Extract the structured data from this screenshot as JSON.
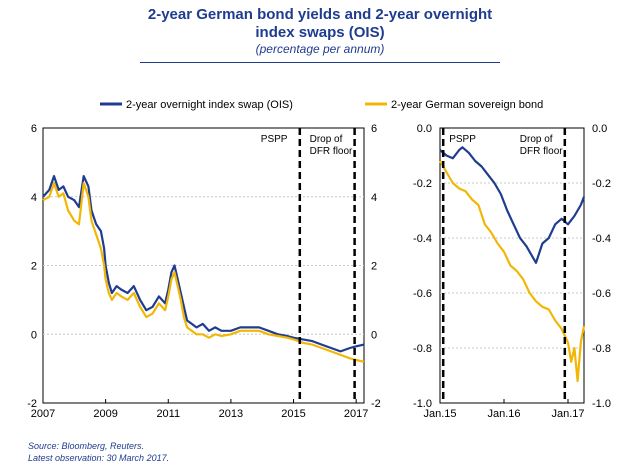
{
  "header": {
    "title_line1": "2-year German bond yields and 2-year overnight",
    "title_line2": "index swaps (OIS)",
    "subtitle": "(percentage per annum)"
  },
  "footer": {
    "source": "Source: Bloomberg, Reuters.",
    "observation": "Latest observation: 30 March 2017."
  },
  "colors": {
    "ois": "#1f3c8f",
    "bond": "#f2b705",
    "title": "#1f3c8f"
  },
  "chart_data": [
    {
      "type": "line",
      "panel": "left",
      "legend_position": "top",
      "xlim": [
        2007.0,
        2017.25
      ],
      "ylim": [
        -2,
        6
      ],
      "x_ticks": [
        2007,
        2009,
        2011,
        2013,
        2015,
        2017
      ],
      "x_tick_labels": [
        "2007",
        "2009",
        "2011",
        "2013",
        "2015",
        "2017"
      ],
      "y_ticks": [
        -2,
        0,
        2,
        4,
        6
      ],
      "y_tick_labels": [
        "-2",
        "0",
        "2",
        "4",
        "6"
      ],
      "grid": true,
      "vlines": [
        {
          "x": 2015.2,
          "label": "PSPP"
        },
        {
          "x": 2016.95,
          "label": "Drop of DFR floor"
        }
      ],
      "series": [
        {
          "name": "2-year overnight index swap (OIS)",
          "x": [
            2007.0,
            2007.2,
            2007.35,
            2007.5,
            2007.65,
            2007.8,
            2008.0,
            2008.15,
            2008.3,
            2008.45,
            2008.55,
            2008.7,
            2008.85,
            2008.95,
            2009.0,
            2009.1,
            2009.2,
            2009.35,
            2009.5,
            2009.7,
            2009.9,
            2010.1,
            2010.3,
            2010.5,
            2010.7,
            2010.9,
            2011.0,
            2011.1,
            2011.2,
            2011.3,
            2011.4,
            2011.5,
            2011.6,
            2011.75,
            2011.9,
            2012.1,
            2012.3,
            2012.5,
            2012.7,
            2013.0,
            2013.3,
            2013.6,
            2013.9,
            2014.2,
            2014.5,
            2014.8,
            2015.0,
            2015.3,
            2015.6,
            2015.9,
            2016.2,
            2016.5,
            2016.8,
            2017.0,
            2017.25
          ],
          "values": [
            4.0,
            4.2,
            4.6,
            4.2,
            4.3,
            4.0,
            3.9,
            3.7,
            4.6,
            4.3,
            3.6,
            3.2,
            3.0,
            2.5,
            2.0,
            1.5,
            1.2,
            1.4,
            1.3,
            1.2,
            1.4,
            1.0,
            0.7,
            0.8,
            1.1,
            0.9,
            1.3,
            1.8,
            2.0,
            1.6,
            1.2,
            0.8,
            0.4,
            0.3,
            0.2,
            0.3,
            0.1,
            0.2,
            0.1,
            0.1,
            0.2,
            0.2,
            0.2,
            0.1,
            0.0,
            -0.05,
            -0.1,
            -0.15,
            -0.2,
            -0.3,
            -0.4,
            -0.5,
            -0.4,
            -0.35,
            -0.3
          ]
        },
        {
          "name": "2-year German sovereign bond",
          "x": [
            2007.0,
            2007.2,
            2007.35,
            2007.5,
            2007.65,
            2007.8,
            2008.0,
            2008.15,
            2008.3,
            2008.45,
            2008.55,
            2008.7,
            2008.85,
            2008.95,
            2009.0,
            2009.1,
            2009.2,
            2009.35,
            2009.5,
            2009.7,
            2009.9,
            2010.1,
            2010.3,
            2010.5,
            2010.7,
            2010.9,
            2011.0,
            2011.1,
            2011.2,
            2011.3,
            2011.4,
            2011.5,
            2011.6,
            2011.75,
            2011.9,
            2012.1,
            2012.3,
            2012.5,
            2012.7,
            2013.0,
            2013.3,
            2013.6,
            2013.9,
            2014.2,
            2014.5,
            2014.8,
            2015.0,
            2015.3,
            2015.6,
            2015.9,
            2016.2,
            2016.5,
            2016.8,
            2017.0,
            2017.25
          ],
          "values": [
            3.9,
            4.0,
            4.4,
            4.0,
            4.1,
            3.6,
            3.3,
            3.2,
            4.4,
            4.0,
            3.3,
            2.9,
            2.5,
            2.0,
            1.6,
            1.2,
            1.0,
            1.2,
            1.1,
            1.0,
            1.2,
            0.8,
            0.5,
            0.6,
            0.9,
            0.7,
            1.1,
            1.6,
            1.8,
            1.4,
            1.0,
            0.5,
            0.2,
            0.1,
            0.0,
            0.0,
            -0.1,
            0.0,
            -0.05,
            0.0,
            0.1,
            0.1,
            0.1,
            0.0,
            -0.05,
            -0.1,
            -0.15,
            -0.25,
            -0.3,
            -0.4,
            -0.5,
            -0.6,
            -0.7,
            -0.75,
            -0.8
          ]
        }
      ]
    },
    {
      "type": "line",
      "panel": "right",
      "xlim": [
        2015.0,
        2017.25
      ],
      "ylim": [
        -1.0,
        0.0
      ],
      "x_ticks": [
        2015.0,
        2016.0,
        2017.0
      ],
      "x_tick_labels": [
        "Jan.15",
        "Jan.16",
        "Jan.17"
      ],
      "y_ticks": [
        -1.0,
        -0.8,
        -0.6,
        -0.4,
        -0.2,
        0.0
      ],
      "y_tick_labels": [
        "-1.0",
        "-0.8",
        "-0.6",
        "-0.4",
        "-0.2",
        "0.0"
      ],
      "grid": true,
      "vlines": [
        {
          "x": 2015.05,
          "label": "PSPP"
        },
        {
          "x": 2016.95,
          "label": "Drop of DFR floor"
        }
      ],
      "series": [
        {
          "name": "2-year overnight index swap (OIS)",
          "x": [
            2015.0,
            2015.1,
            2015.2,
            2015.3,
            2015.35,
            2015.45,
            2015.55,
            2015.65,
            2015.75,
            2015.85,
            2015.95,
            2016.05,
            2016.15,
            2016.25,
            2016.35,
            2016.45,
            2016.5,
            2016.6,
            2016.7,
            2016.8,
            2016.9,
            2017.0,
            2017.1,
            2017.2,
            2017.25
          ],
          "values": [
            -0.08,
            -0.1,
            -0.11,
            -0.08,
            -0.07,
            -0.09,
            -0.12,
            -0.14,
            -0.17,
            -0.2,
            -0.24,
            -0.3,
            -0.35,
            -0.4,
            -0.43,
            -0.47,
            -0.49,
            -0.42,
            -0.4,
            -0.35,
            -0.33,
            -0.35,
            -0.32,
            -0.28,
            -0.25
          ]
        },
        {
          "name": "2-year German sovereign bond",
          "x": [
            2015.0,
            2015.1,
            2015.2,
            2015.3,
            2015.4,
            2015.5,
            2015.6,
            2015.7,
            2015.8,
            2015.9,
            2016.0,
            2016.1,
            2016.2,
            2016.3,
            2016.4,
            2016.5,
            2016.6,
            2016.7,
            2016.8,
            2016.9,
            2017.0,
            2017.05,
            2017.1,
            2017.15,
            2017.2,
            2017.25
          ],
          "values": [
            -0.12,
            -0.16,
            -0.2,
            -0.22,
            -0.23,
            -0.26,
            -0.28,
            -0.35,
            -0.38,
            -0.42,
            -0.45,
            -0.5,
            -0.52,
            -0.55,
            -0.6,
            -0.63,
            -0.65,
            -0.66,
            -0.7,
            -0.73,
            -0.78,
            -0.85,
            -0.8,
            -0.92,
            -0.78,
            -0.72
          ]
        }
      ]
    }
  ]
}
